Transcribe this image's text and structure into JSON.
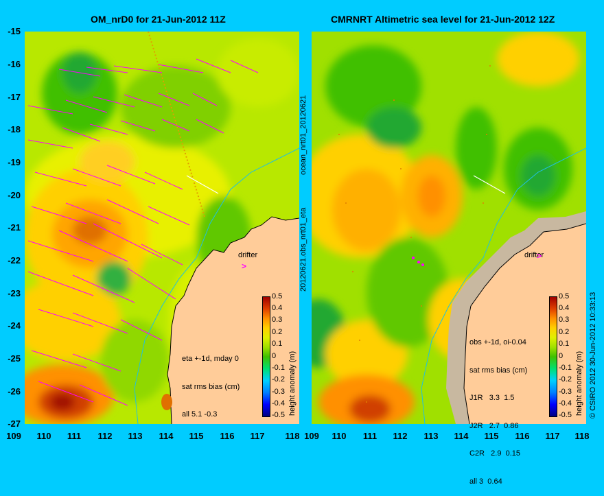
{
  "left_panel": {
    "title": "OM_nrD0 for 21-Jun-2012 11Z",
    "info_lines": [
      "eta +-1d, mday 0",
      "sat rms bias (cm)",
      "all 5.1 -0.3"
    ],
    "drifter_label": "drifter"
  },
  "right_panel": {
    "title": "CMRNRT Altimetric sea level  for 21-Jun-2012 12Z",
    "info_lines": [
      "obs +-1d, oi-0.04",
      "sat rms bias (cm)",
      "J1R   3.3  1.5",
      "J2R   2.7  0.86",
      "C2R   2.9  0.15",
      "all 3  0.64"
    ],
    "drifter_label": "drifter",
    "side_label": "ocean_nrt01_20120621",
    "side_label2": "20120621.obs_nrt01_eta",
    "credit": "© CSIRO 2012   30-Jun-2012 10:33:13"
  },
  "axes": {
    "y_ticks": [
      "-15",
      "-16",
      "-17",
      "-18",
      "-19",
      "-20",
      "-21",
      "-22",
      "-23",
      "-24",
      "-25",
      "-26",
      "-27"
    ],
    "x_ticks": [
      "109",
      "110",
      "111",
      "112",
      "113",
      "114",
      "115",
      "116",
      "117",
      "118"
    ],
    "x_ticks_right": [
      "109",
      "110",
      "111",
      "112",
      "113",
      "114",
      "115",
      "116",
      "117",
      "118"
    ]
  },
  "colorbar": {
    "label": "height anomaly (m)",
    "ticks": [
      "0.5",
      "0.4",
      "0.3",
      "0.2",
      "0.1",
      "0",
      "-0.1",
      "-0.2",
      "-0.3",
      "-0.4",
      "-0.5"
    ],
    "colors": [
      "#000080",
      "#0000ff",
      "#0080ff",
      "#00d0ff",
      "#00e070",
      "#40c000",
      "#a0e000",
      "#e0f000",
      "#ffd000",
      "#ff9000",
      "#e04000",
      "#a00000"
    ]
  },
  "colors": {
    "land": "#ffcc99",
    "shelf": "#c8b8a0",
    "arrow": "#ff00ff",
    "background": "#00ccff"
  }
}
